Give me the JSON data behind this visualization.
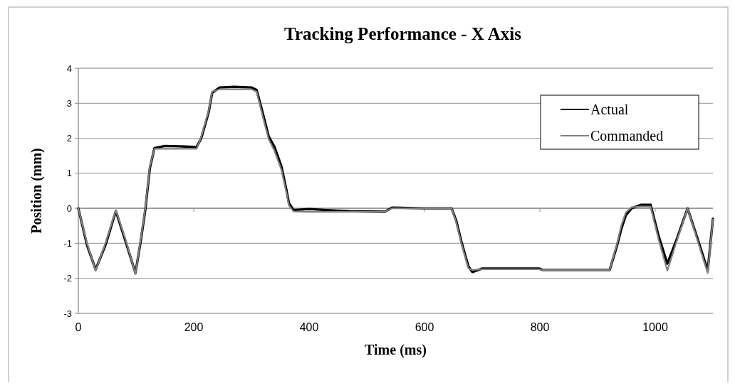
{
  "chart_data": {
    "type": "line",
    "title": "Tracking  Performance - X Axis",
    "xlabel": "Time (ms)",
    "ylabel": "Position (mm)",
    "x": [
      0,
      15,
      30,
      47,
      65,
      82,
      99,
      108,
      116,
      124,
      132,
      150,
      175,
      205,
      213,
      220,
      226,
      232,
      245,
      270,
      300,
      309,
      320,
      330,
      340,
      352,
      361,
      365,
      373,
      400,
      430,
      470,
      531,
      544,
      600,
      647,
      655,
      664,
      676,
      683,
      700,
      750,
      799,
      805,
      850,
      921,
      934,
      941,
      949,
      959,
      975,
      992,
      1006,
      1021,
      1038,
      1056,
      1073,
      1091,
      1100
    ],
    "series": [
      {
        "name": "Actual",
        "color": "#000000",
        "values": [
          0,
          -1.05,
          -1.75,
          -1.05,
          -0.08,
          -0.95,
          -1.85,
          -0.95,
          -0.05,
          1.15,
          1.72,
          1.78,
          1.77,
          1.75,
          2.0,
          2.4,
          2.75,
          3.3,
          3.45,
          3.47,
          3.45,
          3.38,
          2.7,
          2.05,
          1.75,
          1.2,
          0.5,
          0.15,
          -0.05,
          -0.02,
          -0.05,
          -0.08,
          -0.1,
          0.02,
          0,
          0,
          -0.35,
          -0.95,
          -1.65,
          -1.82,
          -1.72,
          -1.72,
          -1.72,
          -1.76,
          -1.76,
          -1.76,
          -1.05,
          -0.6,
          -0.2,
          0,
          0.1,
          0.1,
          -0.8,
          -1.58,
          -0.85,
          0,
          -0.85,
          -1.78,
          -0.3
        ]
      },
      {
        "name": "Commanded",
        "color": "#808080",
        "values": [
          0,
          -1.0,
          -1.78,
          -1.0,
          -0.05,
          -0.9,
          -1.88,
          -0.9,
          0,
          1.2,
          1.7,
          1.7,
          1.7,
          1.7,
          2.04,
          2.45,
          2.79,
          3.33,
          3.4,
          3.4,
          3.4,
          3.33,
          2.6,
          1.97,
          1.64,
          1.1,
          0.43,
          0.08,
          -0.09,
          -0.1,
          -0.1,
          -0.1,
          -0.1,
          0,
          0,
          0,
          -0.4,
          -1.0,
          -1.71,
          -1.76,
          -1.74,
          -1.74,
          -1.74,
          -1.76,
          -1.76,
          -1.76,
          -1.0,
          -0.5,
          -0.12,
          0.03,
          0.05,
          0.05,
          -0.9,
          -1.78,
          -0.9,
          0,
          -0.9,
          -1.85,
          -0.32
        ]
      }
    ],
    "xlim": [
      0,
      1100
    ],
    "xticks": [
      0,
      200,
      400,
      600,
      800,
      1000
    ],
    "ylim": [
      -3,
      4
    ],
    "yticks": [
      -3,
      -2,
      -1,
      0,
      1,
      2,
      3,
      4
    ],
    "grid": "y",
    "legend": "top right",
    "marker": "none",
    "line_style": "solid"
  }
}
